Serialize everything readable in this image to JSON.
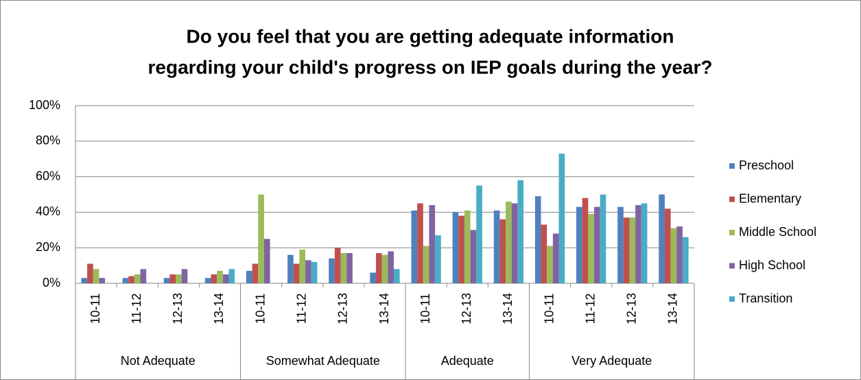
{
  "chart_data": {
    "type": "bar",
    "title": [
      "Do you feel that you are getting adequate information",
      "regarding your child's progress on IEP goals during the year?"
    ],
    "groups": [
      {
        "name": "Not Adequate",
        "categories": [
          "10-11",
          "11-12",
          "12-13",
          "13-14"
        ]
      },
      {
        "name": "Somewhat Adequate",
        "categories": [
          "10-11",
          "11-12",
          "12-13",
          "13-14"
        ]
      },
      {
        "name": "Adequate",
        "categories": [
          "10-11",
          "12-13",
          "13-14"
        ]
      },
      {
        "name": "Very Adequate",
        "categories": [
          "10-11",
          "11-12",
          "12-13",
          "13-14"
        ]
      }
    ],
    "series": [
      {
        "name": "Preschool",
        "color": "#4f81bd",
        "values": [
          3,
          3,
          3,
          3,
          7,
          16,
          14,
          6,
          41,
          40,
          41,
          49,
          43,
          43,
          50
        ]
      },
      {
        "name": "Elementary",
        "color": "#c0504d",
        "values": [
          11,
          4,
          5,
          5,
          11,
          11,
          20,
          17,
          45,
          38,
          36,
          33,
          48,
          37,
          42
        ]
      },
      {
        "name": "Middle School",
        "color": "#9bbb59",
        "values": [
          8,
          5,
          5,
          7,
          50,
          19,
          17,
          16,
          21,
          41,
          46,
          21,
          39,
          37,
          31
        ]
      },
      {
        "name": "High School",
        "color": "#8064a2",
        "values": [
          3,
          8,
          8,
          5,
          25,
          13,
          17,
          18,
          44,
          30,
          45,
          28,
          43,
          44,
          32
        ]
      },
      {
        "name": "Transition",
        "color": "#4bacc6",
        "values": [
          0,
          0,
          0,
          8,
          0,
          12,
          0,
          8,
          27,
          55,
          58,
          73,
          50,
          45,
          26
        ]
      }
    ],
    "ylim": [
      0,
      100
    ],
    "yticks": [
      {
        "value": 0,
        "label": "0%"
      },
      {
        "value": 20,
        "label": "20%"
      },
      {
        "value": 40,
        "label": "40%"
      },
      {
        "value": 60,
        "label": "60%"
      },
      {
        "value": 80,
        "label": "80%"
      },
      {
        "value": 100,
        "label": "100%"
      }
    ],
    "grid": true,
    "legend": "right"
  }
}
